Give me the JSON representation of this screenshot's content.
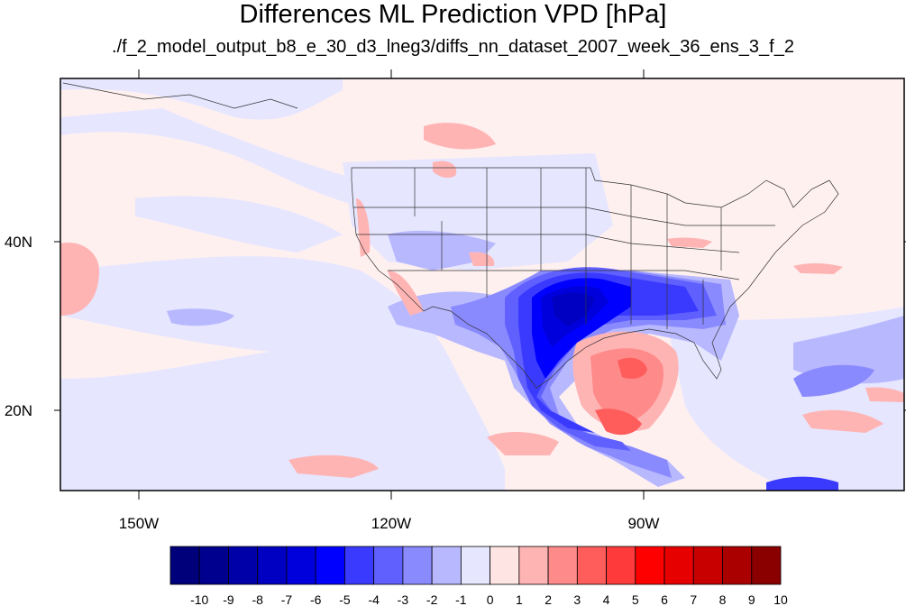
{
  "title": "Differences ML Prediction VPD [hPa]",
  "subtitle": "./f_2_model_output_b8_e_30_d3_lneg3/diffs_nn_dataset_2007_week_36_ens_3_f_2",
  "lon_labels": [
    "150W",
    "120W",
    "90W"
  ],
  "lat_labels": [
    "40N",
    "20N"
  ],
  "colorbar": {
    "labels": [
      "-10",
      "-9",
      "-8",
      "-7",
      "-6",
      "-5",
      "-4",
      "-3",
      "-2",
      "-1",
      "0",
      "1",
      "2",
      "3",
      "4",
      "5",
      "6",
      "7",
      "8",
      "9",
      "10"
    ],
    "colors": [
      "#00007a",
      "#00008f",
      "#0000a8",
      "#0000c2",
      "#0000dd",
      "#0000ff",
      "#3a3aff",
      "#6060ff",
      "#8a8aff",
      "#b8b8ff",
      "#e6e6ff",
      "#ffe4e4",
      "#ffb4b4",
      "#ff8a8a",
      "#ff5c5c",
      "#ff3a3a",
      "#ff0000",
      "#e60000",
      "#c80000",
      "#aa0000",
      "#8a0000"
    ]
  },
  "map_extent": {
    "lon_min": -160,
    "lon_max": -60,
    "lat_min": 10,
    "lat_max": 60
  }
}
